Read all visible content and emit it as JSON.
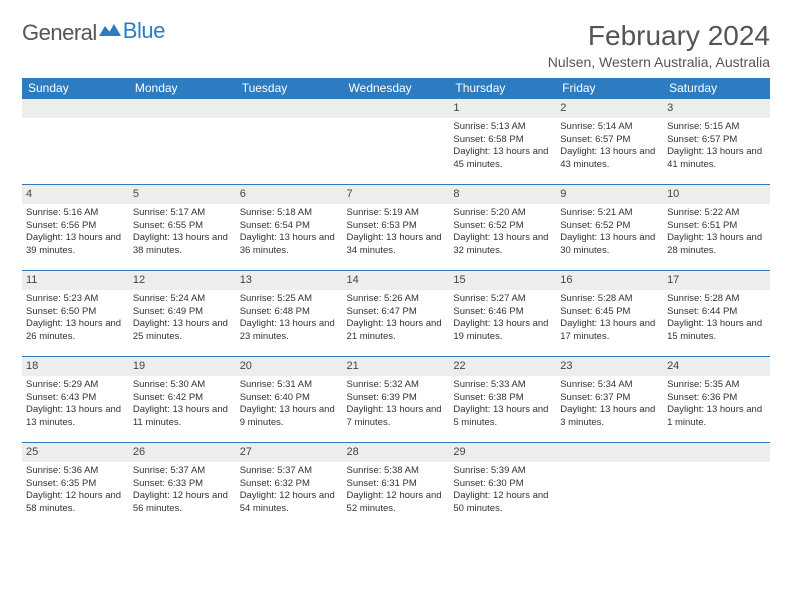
{
  "brand": {
    "name1": "General",
    "name2": "Blue"
  },
  "header": {
    "title": "February 2024",
    "location": "Nulsen, Western Australia, Australia"
  },
  "colors": {
    "accent": "#2d7cc1",
    "header_bg": "#2d7cc1",
    "header_text": "#ffffff",
    "daynum_bg": "#eceded",
    "text": "#333333",
    "page_bg": "#ffffff"
  },
  "typography": {
    "title_fontsize": 28,
    "location_fontsize": 14,
    "dayheader_fontsize": 12,
    "cell_fontsize": 9.5
  },
  "columns": [
    "Sunday",
    "Monday",
    "Tuesday",
    "Wednesday",
    "Thursday",
    "Friday",
    "Saturday"
  ],
  "weeks": [
    [
      null,
      null,
      null,
      null,
      {
        "n": "1",
        "sunrise": "5:13 AM",
        "sunset": "6:58 PM",
        "daylight": "13 hours and 45 minutes."
      },
      {
        "n": "2",
        "sunrise": "5:14 AM",
        "sunset": "6:57 PM",
        "daylight": "13 hours and 43 minutes."
      },
      {
        "n": "3",
        "sunrise": "5:15 AM",
        "sunset": "6:57 PM",
        "daylight": "13 hours and 41 minutes."
      }
    ],
    [
      {
        "n": "4",
        "sunrise": "5:16 AM",
        "sunset": "6:56 PM",
        "daylight": "13 hours and 39 minutes."
      },
      {
        "n": "5",
        "sunrise": "5:17 AM",
        "sunset": "6:55 PM",
        "daylight": "13 hours and 38 minutes."
      },
      {
        "n": "6",
        "sunrise": "5:18 AM",
        "sunset": "6:54 PM",
        "daylight": "13 hours and 36 minutes."
      },
      {
        "n": "7",
        "sunrise": "5:19 AM",
        "sunset": "6:53 PM",
        "daylight": "13 hours and 34 minutes."
      },
      {
        "n": "8",
        "sunrise": "5:20 AM",
        "sunset": "6:52 PM",
        "daylight": "13 hours and 32 minutes."
      },
      {
        "n": "9",
        "sunrise": "5:21 AM",
        "sunset": "6:52 PM",
        "daylight": "13 hours and 30 minutes."
      },
      {
        "n": "10",
        "sunrise": "5:22 AM",
        "sunset": "6:51 PM",
        "daylight": "13 hours and 28 minutes."
      }
    ],
    [
      {
        "n": "11",
        "sunrise": "5:23 AM",
        "sunset": "6:50 PM",
        "daylight": "13 hours and 26 minutes."
      },
      {
        "n": "12",
        "sunrise": "5:24 AM",
        "sunset": "6:49 PM",
        "daylight": "13 hours and 25 minutes."
      },
      {
        "n": "13",
        "sunrise": "5:25 AM",
        "sunset": "6:48 PM",
        "daylight": "13 hours and 23 minutes."
      },
      {
        "n": "14",
        "sunrise": "5:26 AM",
        "sunset": "6:47 PM",
        "daylight": "13 hours and 21 minutes."
      },
      {
        "n": "15",
        "sunrise": "5:27 AM",
        "sunset": "6:46 PM",
        "daylight": "13 hours and 19 minutes."
      },
      {
        "n": "16",
        "sunrise": "5:28 AM",
        "sunset": "6:45 PM",
        "daylight": "13 hours and 17 minutes."
      },
      {
        "n": "17",
        "sunrise": "5:28 AM",
        "sunset": "6:44 PM",
        "daylight": "13 hours and 15 minutes."
      }
    ],
    [
      {
        "n": "18",
        "sunrise": "5:29 AM",
        "sunset": "6:43 PM",
        "daylight": "13 hours and 13 minutes."
      },
      {
        "n": "19",
        "sunrise": "5:30 AM",
        "sunset": "6:42 PM",
        "daylight": "13 hours and 11 minutes."
      },
      {
        "n": "20",
        "sunrise": "5:31 AM",
        "sunset": "6:40 PM",
        "daylight": "13 hours and 9 minutes."
      },
      {
        "n": "21",
        "sunrise": "5:32 AM",
        "sunset": "6:39 PM",
        "daylight": "13 hours and 7 minutes."
      },
      {
        "n": "22",
        "sunrise": "5:33 AM",
        "sunset": "6:38 PM",
        "daylight": "13 hours and 5 minutes."
      },
      {
        "n": "23",
        "sunrise": "5:34 AM",
        "sunset": "6:37 PM",
        "daylight": "13 hours and 3 minutes."
      },
      {
        "n": "24",
        "sunrise": "5:35 AM",
        "sunset": "6:36 PM",
        "daylight": "13 hours and 1 minute."
      }
    ],
    [
      {
        "n": "25",
        "sunrise": "5:36 AM",
        "sunset": "6:35 PM",
        "daylight": "12 hours and 58 minutes."
      },
      {
        "n": "26",
        "sunrise": "5:37 AM",
        "sunset": "6:33 PM",
        "daylight": "12 hours and 56 minutes."
      },
      {
        "n": "27",
        "sunrise": "5:37 AM",
        "sunset": "6:32 PM",
        "daylight": "12 hours and 54 minutes."
      },
      {
        "n": "28",
        "sunrise": "5:38 AM",
        "sunset": "6:31 PM",
        "daylight": "12 hours and 52 minutes."
      },
      {
        "n": "29",
        "sunrise": "5:39 AM",
        "sunset": "6:30 PM",
        "daylight": "12 hours and 50 minutes."
      },
      null,
      null
    ]
  ],
  "labels": {
    "sunrise": "Sunrise: ",
    "sunset": "Sunset: ",
    "daylight": "Daylight: "
  }
}
